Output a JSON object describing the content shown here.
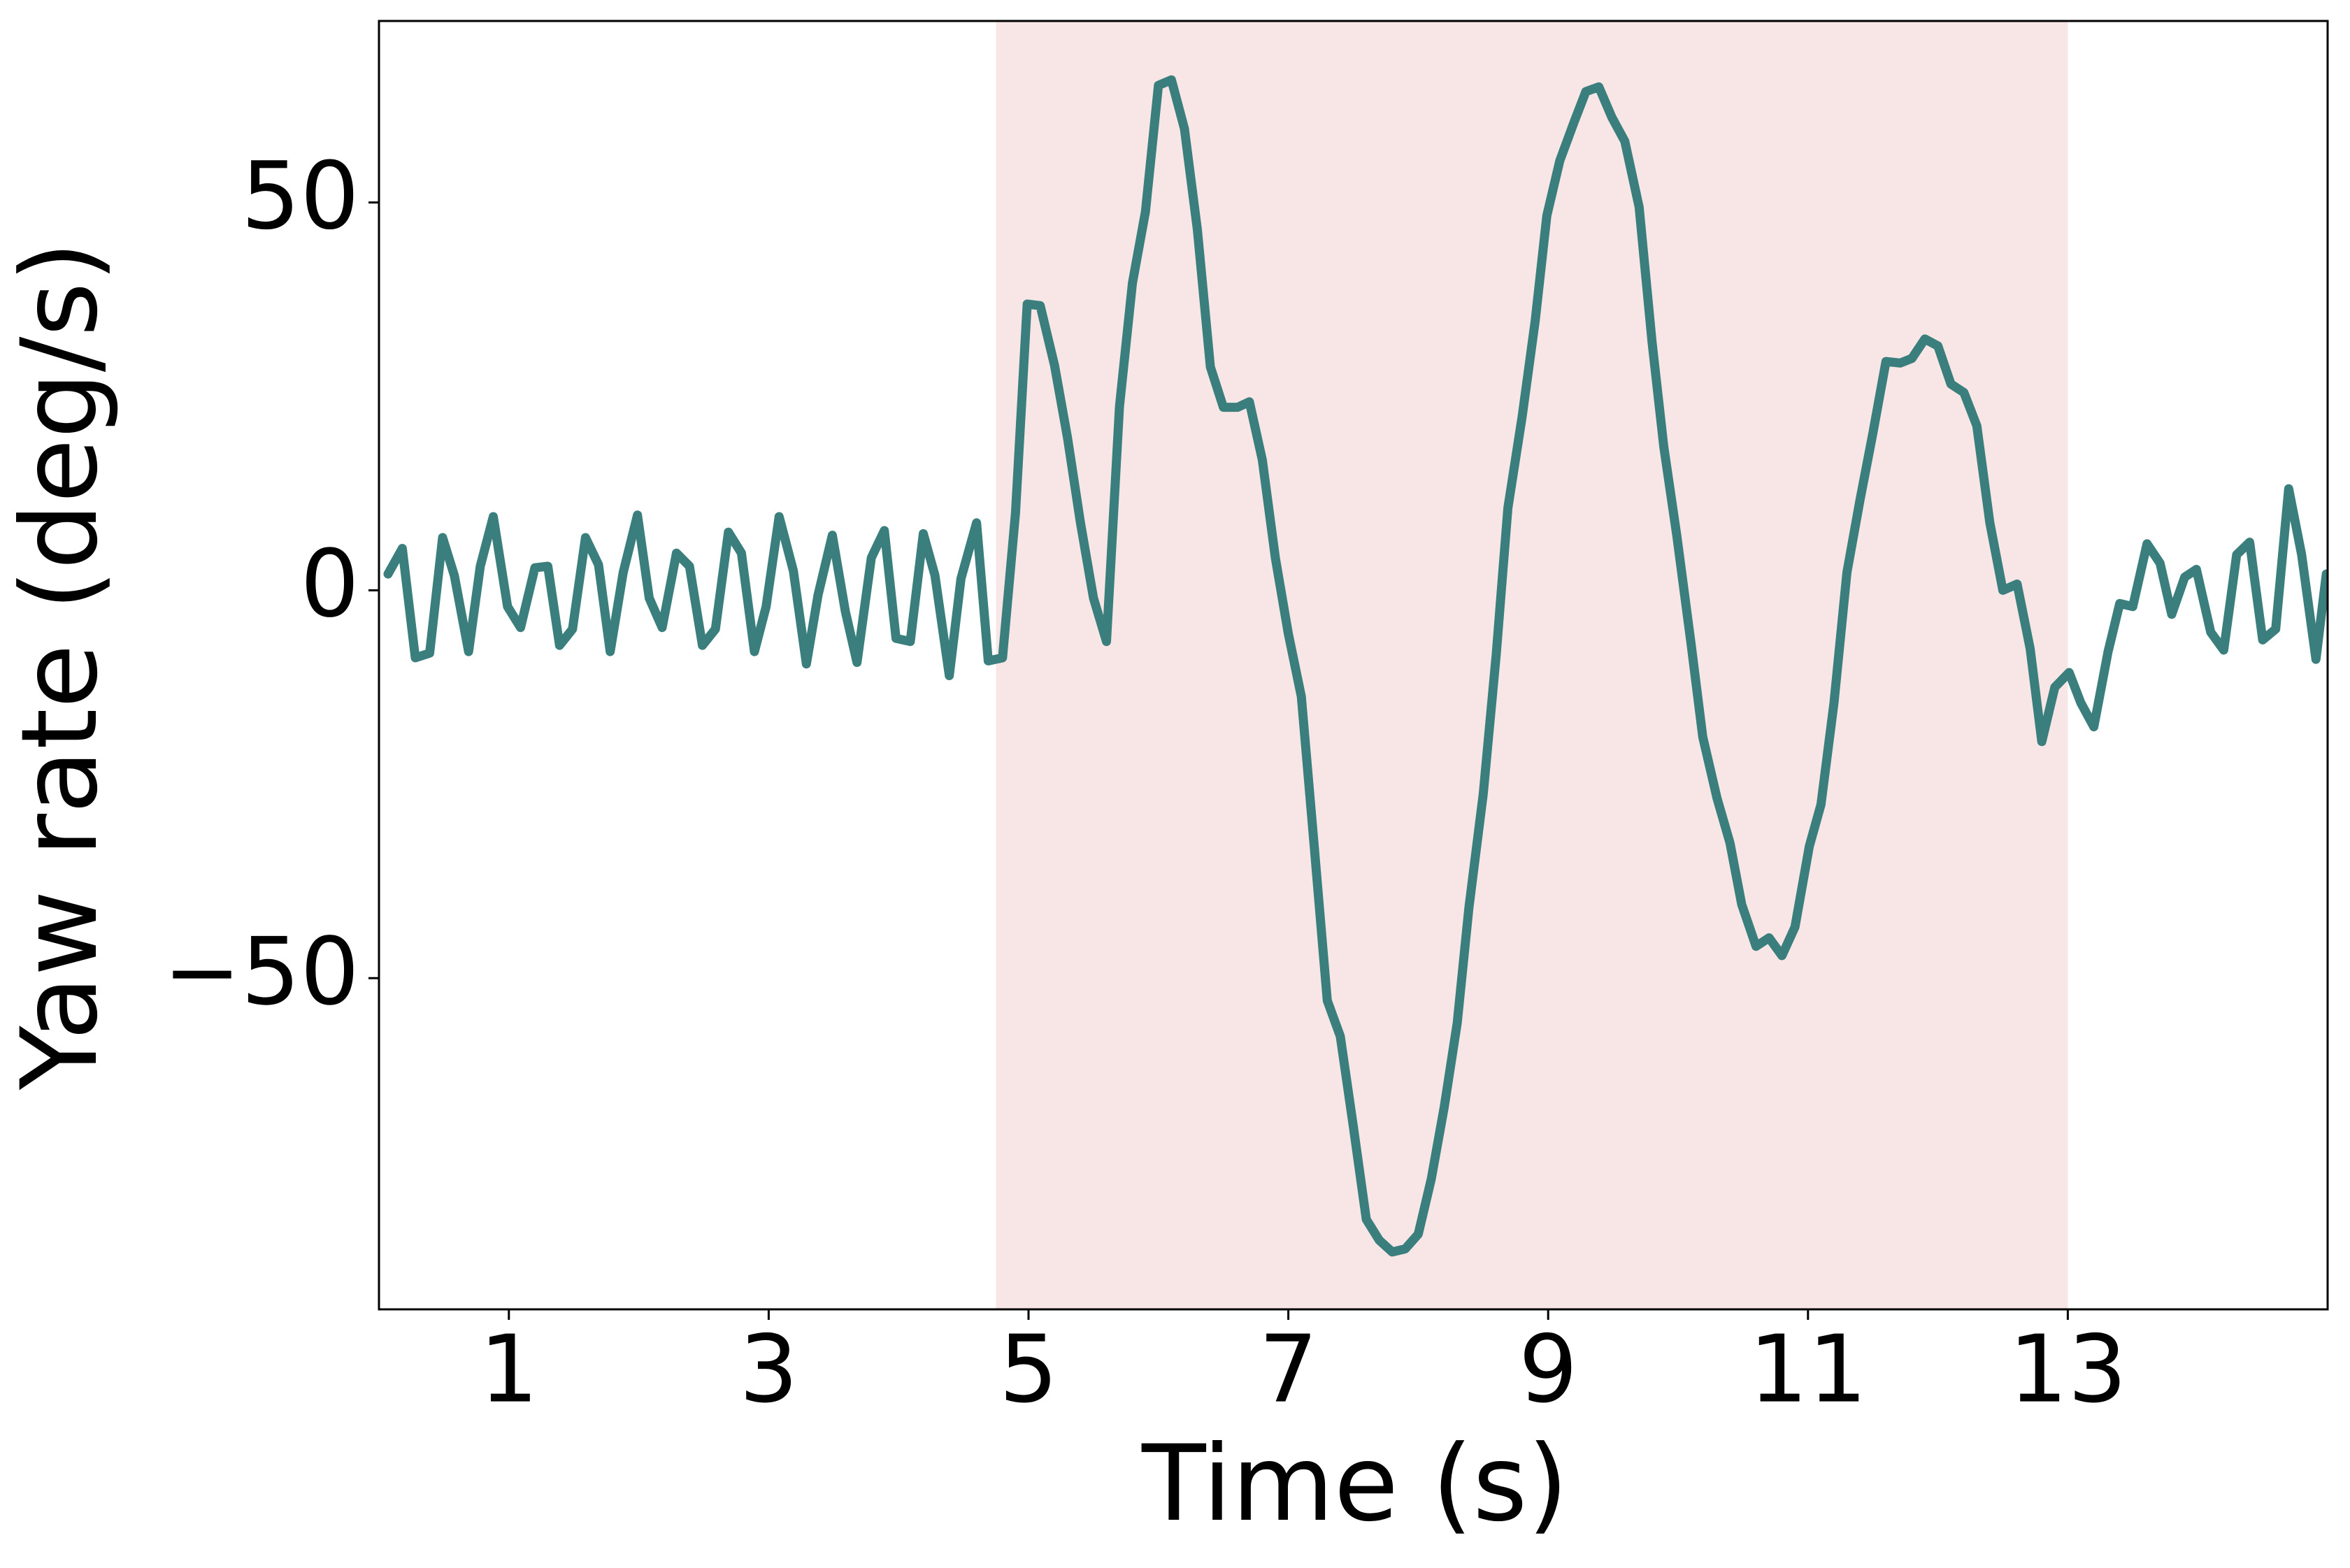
{
  "chart_data": {
    "type": "line",
    "xlabel": "Time (s)",
    "ylabel": "Yaw rate (deg/s)",
    "x": [
      0.07,
      0.18,
      0.28,
      0.39,
      0.49,
      0.58,
      0.69,
      0.78,
      0.88,
      0.99,
      1.09,
      1.2,
      1.3,
      1.39,
      1.49,
      1.59,
      1.69,
      1.78,
      1.88,
      1.99,
      2.08,
      2.18,
      2.29,
      2.39,
      2.49,
      2.59,
      2.69,
      2.79,
      2.89,
      2.98,
      3.08,
      3.19,
      3.29,
      3.38,
      3.49,
      3.59,
      3.68,
      3.79,
      3.89,
      3.98,
      4.09,
      4.19,
      4.28,
      4.39,
      4.48,
      4.6,
      4.69,
      4.8,
      4.9,
      4.99,
      5.09,
      5.2,
      5.3,
      5.4,
      5.5,
      5.6,
      5.7,
      5.8,
      5.9,
      6.0,
      6.1,
      6.2,
      6.3,
      6.4,
      6.5,
      6.61,
      6.7,
      6.8,
      6.9,
      7.0,
      7.1,
      7.2,
      7.3,
      7.4,
      7.5,
      7.6,
      7.7,
      7.8,
      7.9,
      8.0,
      8.1,
      8.2,
      8.3,
      8.39,
      8.5,
      8.6,
      8.69,
      8.8,
      8.9,
      8.99,
      9.09,
      9.2,
      9.29,
      9.39,
      9.49,
      9.59,
      9.7,
      9.8,
      9.89,
      9.99,
      10.1,
      10.19,
      10.3,
      10.4,
      10.49,
      10.6,
      10.7,
      10.8,
      10.9,
      11.01,
      11.1,
      11.2,
      11.3,
      11.4,
      11.5,
      11.6,
      11.71,
      11.8,
      11.9,
      12.0,
      12.1,
      12.2,
      12.3,
      12.4,
      12.5,
      12.61,
      12.71,
      12.8,
      12.9,
      13.01,
      13.1,
      13.2,
      13.31,
      13.4,
      13.5,
      13.61,
      13.71,
      13.8,
      13.9,
      13.99,
      14.1,
      14.2,
      14.3,
      14.4,
      14.5,
      14.6,
      14.7,
      14.8,
      14.91,
      14.99
    ],
    "series": [
      {
        "color": "#3a7f7d",
        "values": [
          2.1,
          5.4,
          -8.7,
          -8.1,
          6.8,
          1.9,
          -7.9,
          3.1,
          9.5,
          -2.1,
          -4.8,
          2.9,
          3.1,
          -7.1,
          -5.0,
          6.8,
          3.3,
          -7.9,
          2.3,
          9.7,
          -1.0,
          -4.8,
          4.8,
          3.1,
          -7.1,
          -5.0,
          7.5,
          4.8,
          -7.9,
          -2.1,
          9.5,
          2.5,
          -9.5,
          -0.6,
          7.1,
          -2.7,
          -9.3,
          4.2,
          7.7,
          -6.2,
          -6.6,
          7.3,
          1.9,
          -11.0,
          1.5,
          8.7,
          -9.1,
          -8.7,
          10.0,
          36.9,
          36.7,
          29.0,
          19.7,
          8.7,
          -1.0,
          -6.6,
          23.7,
          39.6,
          48.8,
          65.1,
          65.8,
          59.5,
          46.5,
          28.8,
          23.6,
          23.6,
          24.3,
          16.8,
          4.2,
          -5.6,
          -13.7,
          -33.2,
          -52.9,
          -57.5,
          -69.1,
          -81.1,
          -83.8,
          -85.3,
          -84.9,
          -83.0,
          -75.9,
          -66.6,
          -55.8,
          -40.9,
          -26.3,
          -8.3,
          10.6,
          22.4,
          34.7,
          48.3,
          55.4,
          60.4,
          64.3,
          64.9,
          61.0,
          57.9,
          49.4,
          32.0,
          18.5,
          7.1,
          -6.9,
          -18.9,
          -26.8,
          -32.6,
          -40.5,
          -45.9,
          -44.8,
          -47.1,
          -43.4,
          -33.0,
          -27.6,
          -14.5,
          2.3,
          11.6,
          20.3,
          29.5,
          29.3,
          29.9,
          32.4,
          31.5,
          26.6,
          25.5,
          21.2,
          8.7,
          0,
          0.8,
          -7.5,
          -19.5,
          -12.5,
          -10.6,
          -14.5,
          -17.6,
          -7.9,
          -1.7,
          -2.1,
          6.0,
          3.5,
          -3.1,
          1.7,
          2.7,
          -5.4,
          -7.7,
          4.6,
          6.2,
          -6.4,
          -5.0,
          13.1,
          4.6,
          -8.9,
          2.1
        ]
      }
    ],
    "shade": {
      "xmin": 4.75,
      "xmax": 13.0,
      "color": "#f8e6e6"
    },
    "xlim": [
      0,
      15
    ],
    "ylim": [
      -92.7,
      73.4
    ],
    "xticks": [
      1,
      3,
      5,
      7,
      9,
      11,
      13
    ],
    "yticks": [
      {
        "value": -50,
        "label": "−50"
      },
      0,
      50
    ]
  }
}
